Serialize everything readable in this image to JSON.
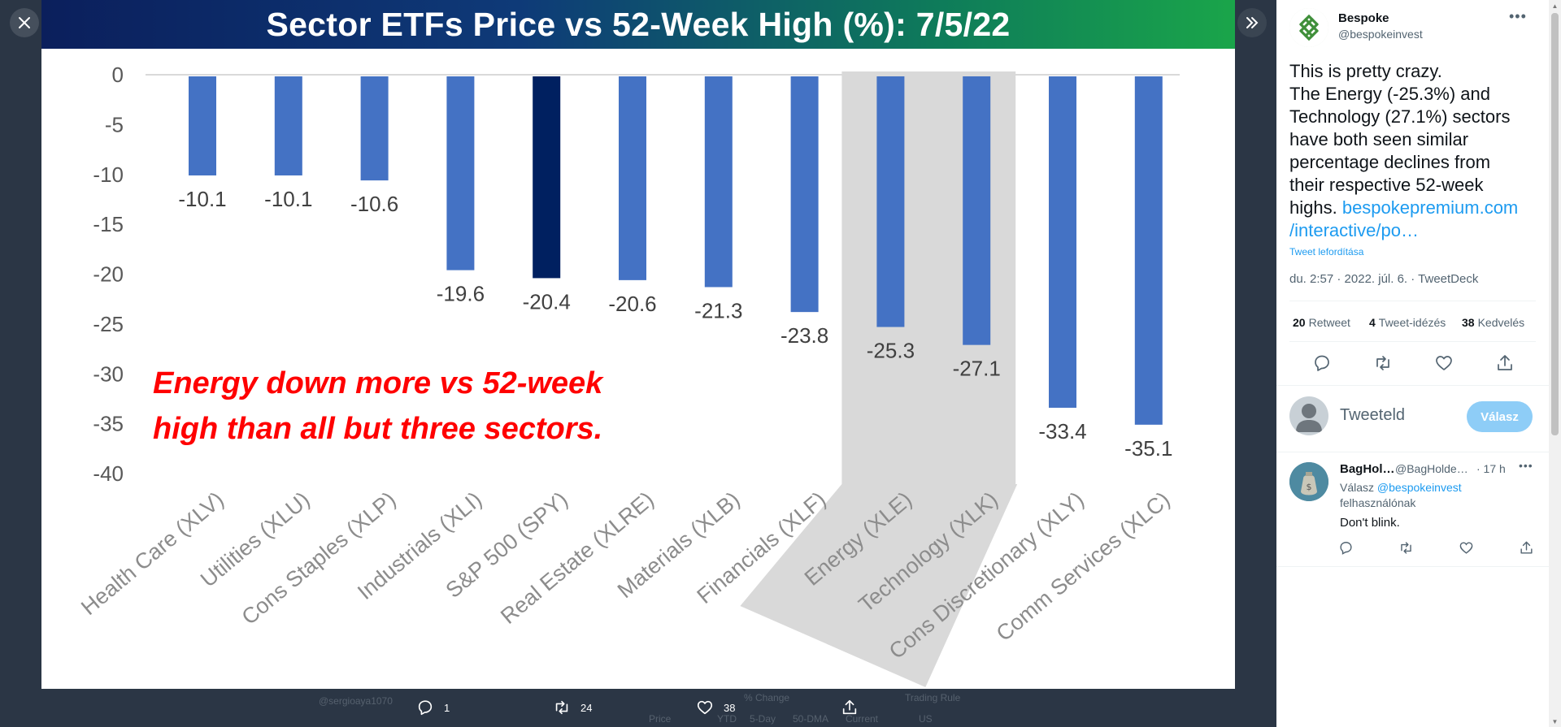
{
  "viewer": {
    "close_icon": "close-icon",
    "expand_icon": "chevron-double-right-icon",
    "ghost": {
      "user_handle": "@sergioaya1070",
      "change": "% Change",
      "trading_rule": "Trading Rule",
      "price": "Price",
      "ytd": "YTD",
      "five_day": "5-Day",
      "dma": "50-DMA",
      "current": "Current",
      "us": "US"
    }
  },
  "chart_data": {
    "type": "bar",
    "title": "Sector ETFs Price vs 52-Week High (%): 7/5/22",
    "categories": [
      "Health Care (XLV)",
      "Utilities (XLU)",
      "Cons Staples (XLP)",
      "Industrials (XLI)",
      "S&P 500 (SPY)",
      "Real Estate (XLRE)",
      "Materials (XLB)",
      "Financials (XLF)",
      "Energy (XLE)",
      "Technology (XLK)",
      "Cons Discretionary (XLY)",
      "Comm Services (XLC)"
    ],
    "values": [
      -10.1,
      -10.1,
      -10.6,
      -19.6,
      -20.4,
      -20.6,
      -21.3,
      -23.8,
      -25.3,
      -27.1,
      -33.4,
      -35.1
    ],
    "value_labels": [
      "-10.1",
      "-10.1",
      "-10.6",
      "-19.6",
      "-20.4",
      "-20.6",
      "-21.3",
      "-23.8",
      "-25.3",
      "-27.1",
      "-33.4",
      "-35.1"
    ],
    "yticks": [
      "0",
      "-5",
      "-10",
      "-15",
      "-20",
      "-25",
      "-30",
      "-35",
      "-40"
    ],
    "ylim": [
      -40,
      0
    ],
    "highlight_categories": [
      "Energy (XLE)",
      "Technology (XLK)"
    ],
    "dark_bar_category": "S&P 500 (SPY)",
    "annotation_line1": "Energy down more vs 52-week",
    "annotation_line2": "high than all but three sectors.",
    "colors": {
      "bar": "#4472c4",
      "bar_dark": "#002060",
      "highlight": "#d9d9d9",
      "annotation": "#ff0000",
      "axis_text": "#595959"
    }
  },
  "bottom_bar": {
    "reply_count": "1",
    "retweet_count": "24",
    "like_count": "38",
    "reply_icon": "reply-icon",
    "retweet_icon": "retweet-icon",
    "like_icon": "heart-icon",
    "share_icon": "share-icon"
  },
  "tweet": {
    "author_name": "Bespoke",
    "author_handle": "@bespokeinvest",
    "text_lines": [
      "This is pretty crazy.",
      "The Energy (-25.3%) and",
      "Technology (27.1%) sectors",
      "have both seen similar",
      "percentage declines from",
      "their respective 52-week",
      "highs. "
    ],
    "link_line1": "bespokepremium.com",
    "link_line2": "/interactive/po…",
    "translate": "Tweet lefordítása",
    "meta": "du. 2:57 · 2022. júl. 6. · TweetDeck",
    "retweets_count": "20",
    "retweets_label": "Retweet",
    "quotes_count": "4",
    "quotes_label": "Tweet-idézés",
    "likes_count": "38",
    "likes_label": "Kedvelés"
  },
  "compose": {
    "placeholder": "Tweeteld",
    "reply_button": "Válasz"
  },
  "reply": {
    "author_name": "BagHol…",
    "author_handle": "@BagHolde…",
    "time": "· 17 h",
    "reply_to_prefix": "Válasz",
    "reply_to_mention": "@bespokeinvest",
    "reply_to_suffix": "felhasználónak",
    "text": "Don't blink."
  }
}
